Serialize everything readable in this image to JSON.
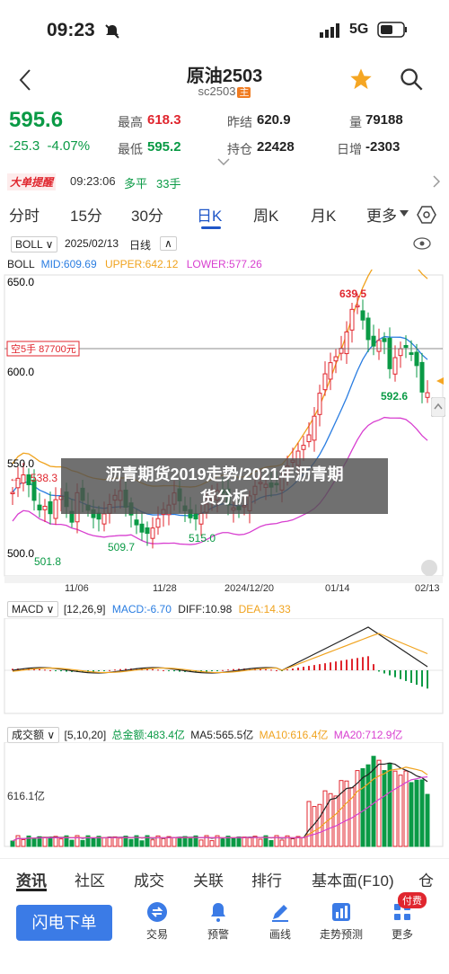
{
  "status": {
    "time": "09:23",
    "network": "5G"
  },
  "header": {
    "title": "原油2503",
    "subtitle": "sc2503",
    "tag": "主"
  },
  "quote": {
    "price": "595.6",
    "change": "-25.3",
    "change_pct": "-4.07%",
    "high_label": "最高",
    "high": "618.3",
    "low_label": "最低",
    "low": "595.2",
    "prev_close_label": "昨结",
    "prev_close": "620.9",
    "open_interest_label": "持仓",
    "open_interest": "22428",
    "volume_label": "量",
    "volume": "79188",
    "daily_inc_label": "日增",
    "daily_inc": "-2303"
  },
  "ticker": {
    "badge": "大单提醒",
    "time": "09:23:06",
    "side": "多平",
    "qty": "33手"
  },
  "tabs": [
    "分时",
    "15分",
    "30分",
    "日K",
    "周K",
    "月K",
    "更多"
  ],
  "active_tab": "日K",
  "kline": {
    "indicator": "BOLL",
    "date": "2025/02/13",
    "period": "日线",
    "mid_label": "MID:609.69",
    "upper_label": "UPPER:642.12",
    "lower_label": "LOWER:577.26",
    "y_labels": [
      "650.0",
      "600.0",
      "550.0",
      "500.0"
    ],
    "ref_label": "空5手 87700元",
    "annot_high": "639.5",
    "annot_low1": "501.8",
    "annot_left": "538.3",
    "annot_mid1": "509.7",
    "annot_mid2": "515.0",
    "annot_right": "592.6",
    "x_labels": [
      "11/06",
      "11/28",
      "2024/12/20",
      "01/14",
      "02/13"
    ]
  },
  "macd": {
    "name": "MACD",
    "params": "[12,26,9]",
    "macd": "MACD:-6.70",
    "diff": "DIFF:10.98",
    "dea": "DEA:14.33"
  },
  "volume_panel": {
    "name": "成交额",
    "params": "[5,10,20]",
    "total": "总金额:483.4亿",
    "ma5": "MA5:565.5亿",
    "ma10": "MA10:616.4亿",
    "ma20": "MA20:712.9亿",
    "y_label": "616.1亿"
  },
  "overlay": {
    "line1": "沥青期货2019走势/2021年沥青期",
    "line2": "货分析"
  },
  "bottom_tabs": [
    "资讯",
    "社区",
    "成交",
    "关联",
    "排行",
    "基本面(F10)",
    "仓"
  ],
  "actions": {
    "flash": "闪电下单",
    "trade": "交易",
    "alert": "预警",
    "draw": "画线",
    "predict": "走势预测",
    "more": "更多",
    "paid_badge": "付费"
  },
  "colors": {
    "up": "#e0262e",
    "down": "#0a9a45",
    "accent": "#1f56c8",
    "boll_mid": "#2a7de1",
    "boll_upper": "#f0a31e",
    "boll_lower": "#d83fd0"
  }
}
